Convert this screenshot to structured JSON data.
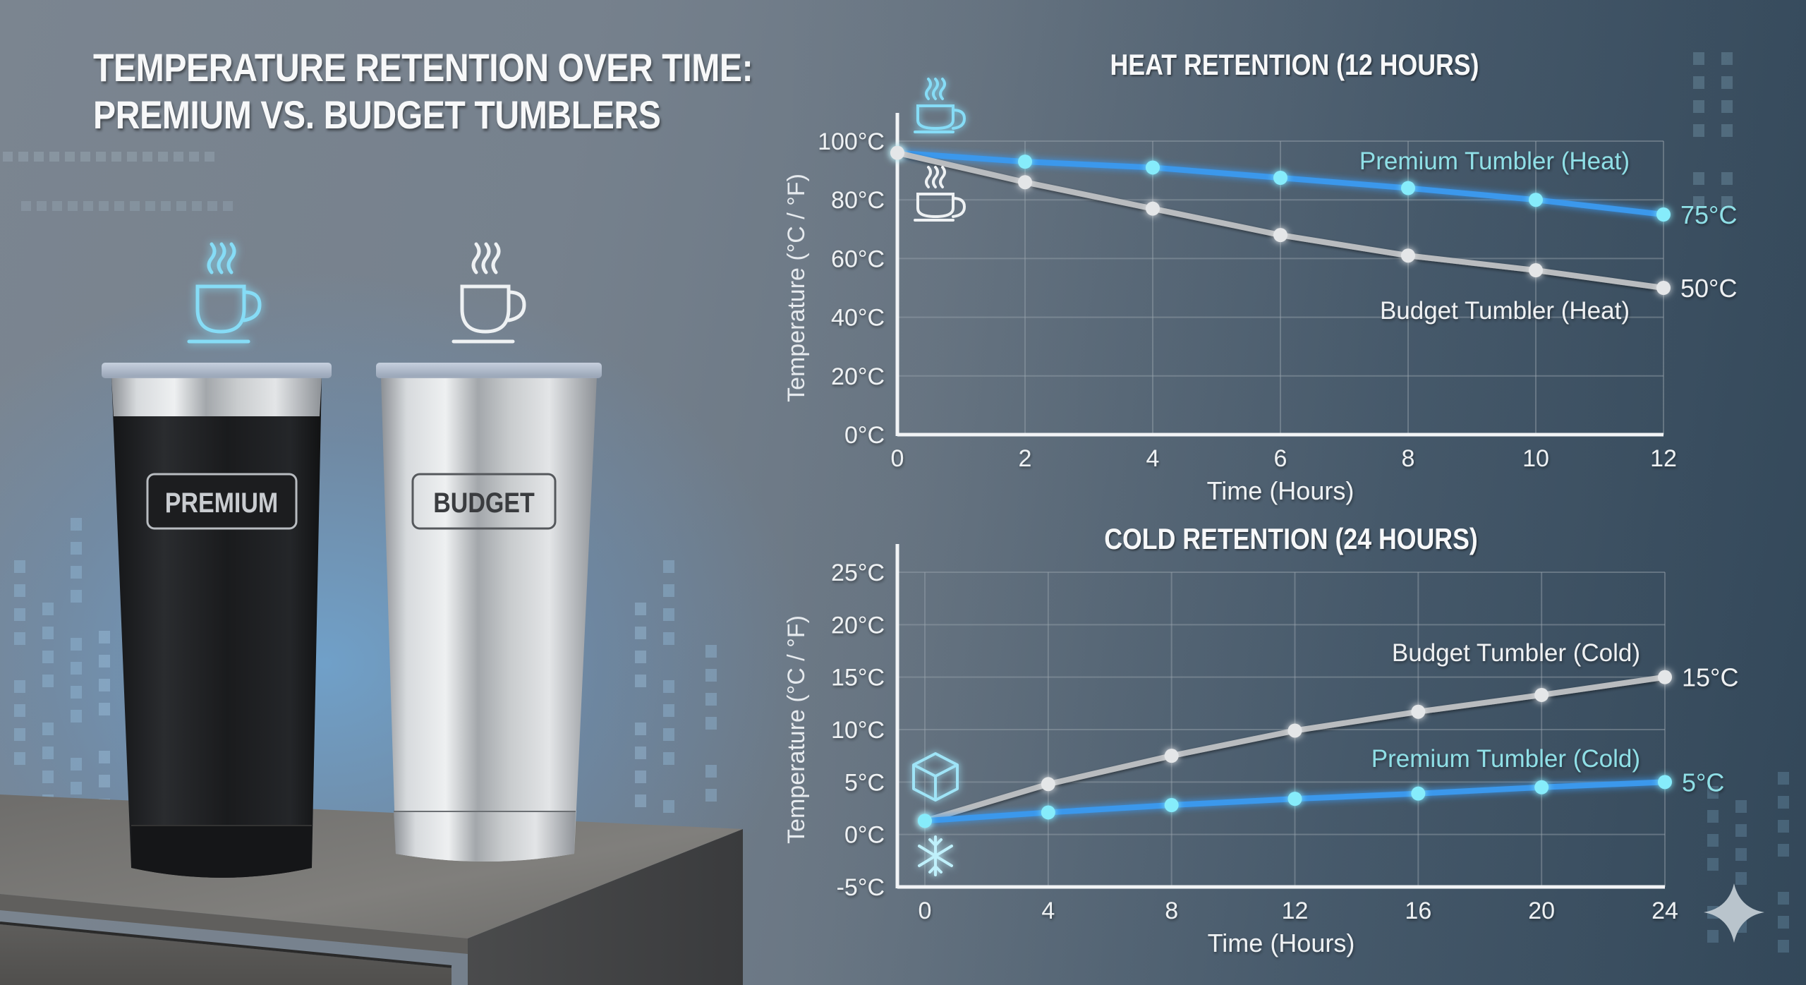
{
  "header": {
    "title_line1": "TEMPERATURE RETENTION OVER TIME:",
    "title_line2": "PREMIUM VS. BUDGET TUMBLERS"
  },
  "products": [
    {
      "name": "premium",
      "label": "PREMIUM",
      "icon": "hot-cup-icon",
      "icon_color": "#7fdcf5",
      "body_color": "#1b1c1e"
    },
    {
      "name": "budget",
      "label": "BUDGET",
      "icon": "hot-cup-icon",
      "icon_color": "#e8eef2",
      "body_color": "#b7babd"
    }
  ],
  "colors": {
    "premium_line": "#3a98ec",
    "premium_dot": "#86ecfb",
    "premium_text": "#8fdfe6",
    "budget_line": "#b9bcbf",
    "budget_dot": "#e4e6e8",
    "budget_text": "#eef0f2",
    "grid": "#9aa4ad",
    "axis": "#f2f4f6"
  },
  "chart_data": [
    {
      "type": "line",
      "title": "HEAT RETENTION (12 HOURS)",
      "xlabel": "Time (Hours)",
      "ylabel": "Temperature (°C / °F)",
      "x": [
        0,
        2,
        4,
        6,
        8,
        10,
        12
      ],
      "x_ticks": [
        "0",
        "2",
        "4",
        "6",
        "8",
        "10",
        "12"
      ],
      "y_ticks": [
        "0°C",
        "20°C",
        "40°C",
        "60°C",
        "80°C",
        "100°C"
      ],
      "ylim": [
        0,
        100
      ],
      "grid": true,
      "series": [
        {
          "name": "Premium Tumbler (Heat)",
          "values": [
            96,
            93,
            91,
            87.5,
            84,
            80,
            75
          ],
          "end_label": "75°C",
          "icons": [
            "hot-cup-icon"
          ]
        },
        {
          "name": "Budget Tumbler (Heat)",
          "values": [
            96,
            86,
            77,
            68,
            61,
            56,
            50
          ],
          "end_label": "50°C",
          "icons": [
            "hot-cup-icon"
          ]
        }
      ]
    },
    {
      "type": "line",
      "title": "COLD RETENTION (24 HOURS)",
      "xlabel": "Time (Hours)",
      "ylabel": "Temperature (°C / °F)",
      "x": [
        0,
        4,
        8,
        12,
        16,
        20,
        24
      ],
      "x_ticks": [
        "0",
        "4",
        "8",
        "12",
        "16",
        "20",
        "24"
      ],
      "y_ticks": [
        "-5°C",
        "0°C",
        "5°C",
        "10°C",
        "15°C",
        "20°C",
        "25°C"
      ],
      "ylim": [
        -5,
        25
      ],
      "grid": true,
      "series": [
        {
          "name": "Budget Tumbler (Cold)",
          "values": [
            1.3,
            4.8,
            7.5,
            9.9,
            11.7,
            13.3,
            15
          ],
          "end_label": "15°C"
        },
        {
          "name": "Premium Tumbler (Cold)",
          "values": [
            1.3,
            2.1,
            2.8,
            3.4,
            3.9,
            4.5,
            5
          ],
          "end_label": "5°C",
          "icons": [
            "ice-cube-icon",
            "snowflake-icon"
          ]
        }
      ]
    }
  ]
}
